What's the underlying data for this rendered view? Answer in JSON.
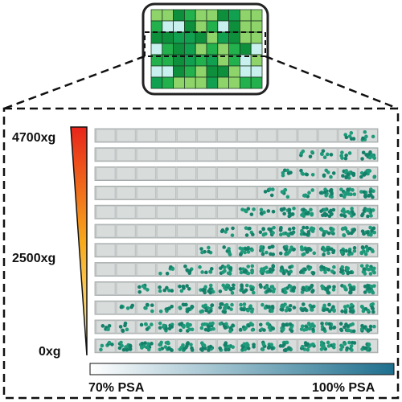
{
  "force_axis": {
    "labels": [
      "4700xg",
      "2500xg",
      "0xg"
    ]
  },
  "concentration_axis": {
    "labels": [
      "70% PSA",
      "100% PSA"
    ]
  }
}
